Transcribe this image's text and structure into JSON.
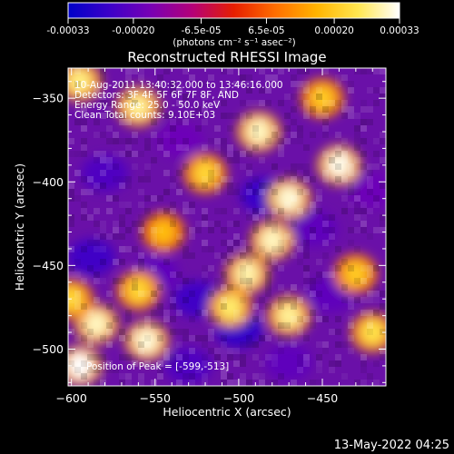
{
  "colorbar": {
    "tick_labels": [
      "-0.00033",
      "-0.00020",
      "-6.5e-05",
      "6.5e-05",
      "0.00020",
      "0.00033"
    ],
    "tick_values": [
      -0.00033,
      -0.0002,
      -6.5e-05,
      6.5e-05,
      0.0002,
      0.00033
    ],
    "range": [
      -0.00033,
      0.00033
    ],
    "unit_label": "(photons cm⁻² s⁻¹ asec⁻²)",
    "colors": [
      "#0000c8",
      "#3c00c8",
      "#7800b4",
      "#b40078",
      "#e61e00",
      "#ff6e00",
      "#ffb400",
      "#ffe650",
      "#ffffff"
    ]
  },
  "info": {
    "time_range": "10-Aug-2011 13:40:32.000 to 13:46:16.000",
    "detectors": "Detectors: 3F 4F 5F 6F 7F 8F, AND",
    "energy_range": "Energy Range: 25.0 - 50.0 keV",
    "algorithm": "Clean    Total counts: 9.10E+03",
    "peak": "Position of Peak = [-599,-513]"
  },
  "footer": {
    "timestamp": "13-May-2022 04:25"
  },
  "chart_data": {
    "type": "heatmap",
    "title": "Reconstructed RHESSI Image",
    "xlabel": "Heliocentric X (arcsec)",
    "ylabel": "Heliocentric Y (arcsec)",
    "xlim": [
      -602,
      -412
    ],
    "ylim": [
      -522,
      -332
    ],
    "x_ticks": [
      -600,
      -550,
      -500,
      -450
    ],
    "x_tick_labels": [
      "−600",
      "−550",
      "−500",
      "−450"
    ],
    "y_ticks": [
      -350,
      -400,
      -450,
      -500
    ],
    "y_tick_labels": [
      "−350",
      "−400",
      "−450",
      "−500"
    ],
    "value_unit": "photons cm^-2 s^-1 asec^-2",
    "bright_regions": [
      {
        "x": -488,
        "y": -370,
        "value": 0.0003
      },
      {
        "x": -440,
        "y": -390,
        "value": 0.00032
      },
      {
        "x": -560,
        "y": -355,
        "value": 0.00028
      },
      {
        "x": -595,
        "y": -340,
        "value": 0.00027
      },
      {
        "x": -520,
        "y": -395,
        "value": 0.00022
      },
      {
        "x": -470,
        "y": -410,
        "value": 0.00031
      },
      {
        "x": -480,
        "y": -435,
        "value": 0.0003
      },
      {
        "x": -495,
        "y": -455,
        "value": 0.00029
      },
      {
        "x": -505,
        "y": -475,
        "value": 0.00026
      },
      {
        "x": -470,
        "y": -480,
        "value": 0.00028
      },
      {
        "x": -555,
        "y": -495,
        "value": 0.00031
      },
      {
        "x": -595,
        "y": -510,
        "value": 0.00033
      },
      {
        "x": -585,
        "y": -485,
        "value": 0.0003
      },
      {
        "x": -560,
        "y": -465,
        "value": 0.00022
      },
      {
        "x": -430,
        "y": -455,
        "value": 0.0002
      },
      {
        "x": -420,
        "y": -490,
        "value": 0.00024
      },
      {
        "x": -545,
        "y": -430,
        "value": 0.00018
      },
      {
        "x": -450,
        "y": -350,
        "value": 0.0002
      },
      {
        "x": -600,
        "y": -470,
        "value": 0.00022
      }
    ],
    "dark_regions": [
      {
        "x": -580,
        "y": -395,
        "value": -0.00022
      },
      {
        "x": -485,
        "y": -408,
        "value": -0.00025
      },
      {
        "x": -455,
        "y": -428,
        "value": -0.0002
      },
      {
        "x": -588,
        "y": -445,
        "value": -0.00024
      },
      {
        "x": -550,
        "y": -455,
        "value": -0.0002
      },
      {
        "x": -525,
        "y": -470,
        "value": -0.00024
      },
      {
        "x": -500,
        "y": -488,
        "value": -0.00026
      },
      {
        "x": -445,
        "y": -467,
        "value": -0.0002
      },
      {
        "x": -530,
        "y": -510,
        "value": -0.00022
      },
      {
        "x": -470,
        "y": -508,
        "value": -0.0002
      },
      {
        "x": -535,
        "y": -375,
        "value": -0.00018
      },
      {
        "x": -420,
        "y": -405,
        "value": -0.00018
      }
    ]
  }
}
